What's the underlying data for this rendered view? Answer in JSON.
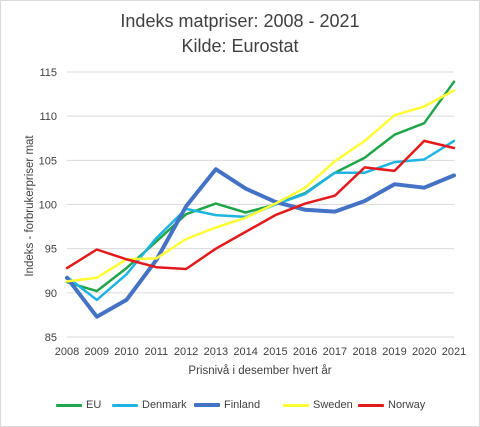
{
  "chart_data": {
    "type": "line",
    "title": "Indeks matpriser: 2008 - 2021",
    "subtitle": "Kilde: Eurostat",
    "xlabel": "Prisnivå i desember hvert år",
    "ylabel": "Indeks - forbrukerpriser mat",
    "ylim": [
      85,
      115
    ],
    "yticks": [
      85,
      90,
      95,
      100,
      105,
      110,
      115
    ],
    "categories": [
      "2008",
      "2009",
      "2010",
      "2011",
      "2012",
      "2013",
      "2014",
      "2015",
      "2016",
      "2017",
      "2018",
      "2019",
      "2020",
      "2021"
    ],
    "grid": true,
    "legend_position": "bottom",
    "series": [
      {
        "name": "EU",
        "color": "#1fa54a",
        "values": [
          91.2,
          90.2,
          92.8,
          95.8,
          98.9,
          100.1,
          99.1,
          100.0,
          101.3,
          103.6,
          105.3,
          107.9,
          109.2,
          113.9
        ]
      },
      {
        "name": "Denmark",
        "color": "#1fb3e3",
        "values": [
          91.8,
          89.2,
          92.1,
          96.2,
          99.5,
          98.8,
          98.6,
          100.0,
          101.2,
          103.6,
          103.6,
          104.8,
          105.1,
          107.2
        ]
      },
      {
        "name": "Finland",
        "color": "#4472c4",
        "values": [
          91.7,
          87.3,
          89.2,
          93.7,
          99.8,
          104.0,
          101.8,
          100.3,
          99.4,
          99.2,
          100.4,
          102.3,
          101.9,
          103.3
        ]
      },
      {
        "name": "Sweden",
        "color": "#ffff33",
        "values": [
          91.3,
          91.7,
          93.8,
          93.9,
          96.1,
          97.4,
          98.5,
          100.1,
          101.9,
          104.9,
          107.2,
          110.1,
          111.1,
          112.9
        ]
      },
      {
        "name": "Norway",
        "color": "#e31a1c",
        "values": [
          92.8,
          94.9,
          93.8,
          92.9,
          92.7,
          95.0,
          96.9,
          98.8,
          100.1,
          101.0,
          104.2,
          103.8,
          107.2,
          106.4
        ]
      }
    ]
  }
}
